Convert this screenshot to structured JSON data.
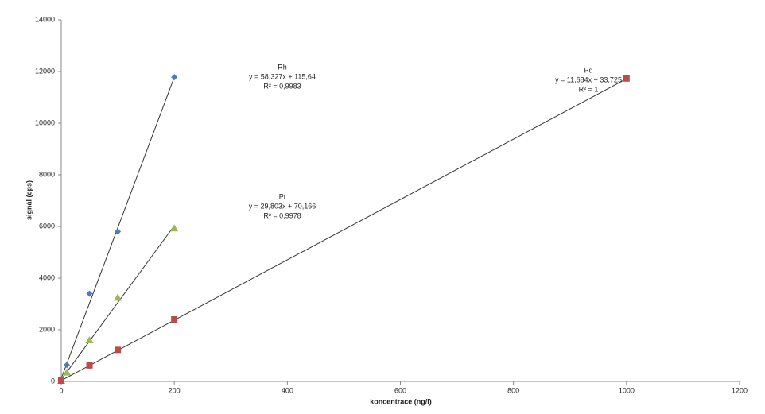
{
  "chart_data": {
    "type": "scatter",
    "x_label": "koncentrace (ng/l)",
    "y_label": "signál (cps)",
    "xlim": [
      0,
      1200
    ],
    "xticks": [
      0,
      200,
      400,
      600,
      800,
      1000,
      1200
    ],
    "ylim": [
      0,
      14000
    ],
    "yticks": [
      0,
      2000,
      4000,
      6000,
      8000,
      10000,
      12000,
      14000
    ],
    "series": [
      {
        "name": "Rh",
        "color": "#4a7ebb",
        "marker": "diamond",
        "x": [
          0,
          10,
          50,
          100,
          200
        ],
        "values": [
          50,
          640,
          3400,
          5800,
          11780
        ],
        "trendline": {
          "slope": 58.327,
          "intercept": 115.64,
          "label": "y = 58,327x + 115,64",
          "r2": 0.9983,
          "r2_label": "R² = 0,9983"
        }
      },
      {
        "name": "Pt",
        "color": "#98b954",
        "marker": "triangle",
        "x": [
          0,
          10,
          50,
          100,
          200
        ],
        "values": [
          30,
          350,
          1600,
          3250,
          5930
        ],
        "trendline": {
          "slope": 29.803,
          "intercept": 70.166,
          "label": "y = 29,803x + 70,166",
          "r2": 0.9978,
          "r2_label": "R² = 0,9978"
        }
      },
      {
        "name": "Pd",
        "color": "#be4b48",
        "marker": "square",
        "x": [
          0,
          50,
          100,
          200,
          1000
        ],
        "values": [
          30,
          620,
          1220,
          2400,
          11730
        ],
        "trendline": {
          "slope": 11.684,
          "intercept": 33.725,
          "label": "y = 11,684x + 33,725",
          "r2": 1,
          "r2_label": "R² = 1"
        }
      }
    ]
  }
}
